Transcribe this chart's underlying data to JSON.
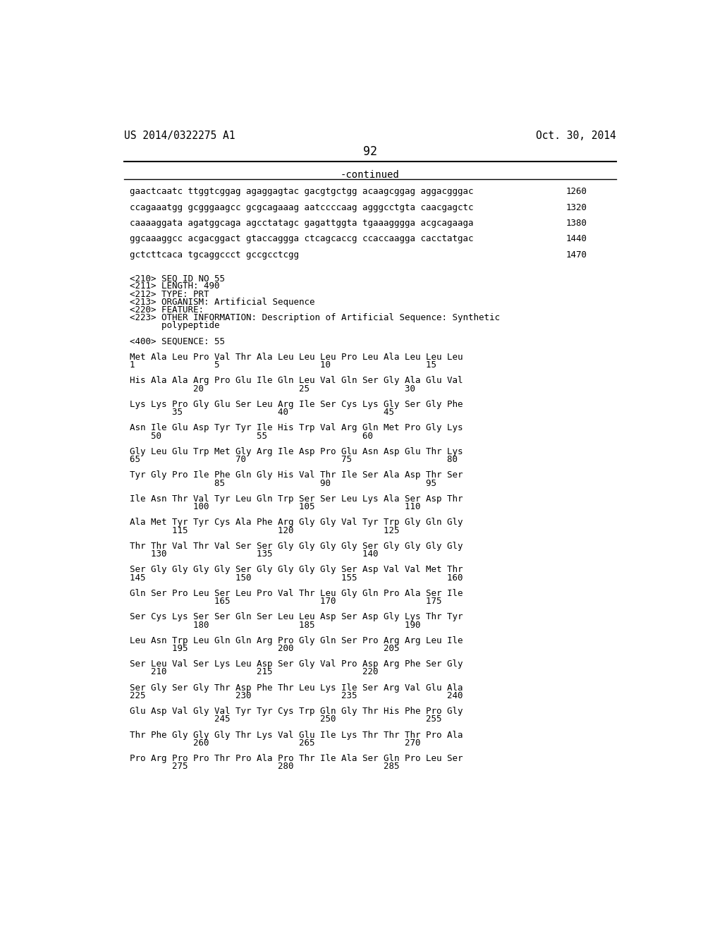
{
  "header_left": "US 2014/0322275 A1",
  "header_right": "Oct. 30, 2014",
  "page_number": "92",
  "continued_label": "-continued",
  "background_color": "#ffffff",
  "text_color": "#000000",
  "content_lines": [
    {
      "text": "gaactcaatc ttggtcggag agaggagtac gacgtgctgg acaagcggag aggacgggac",
      "number": "1260"
    },
    {
      "text": "",
      "number": ""
    },
    {
      "text": "ccagaaatgg gcgggaagcc gcgcagaaag aatccccaag agggcctgta caacgagctc",
      "number": "1320"
    },
    {
      "text": "",
      "number": ""
    },
    {
      "text": "caaaaggata agatggcaga agcctatagc gagattggta tgaaagggga acgcagaaga",
      "number": "1380"
    },
    {
      "text": "",
      "number": ""
    },
    {
      "text": "ggcaaaggcc acgacggact gtaccaggga ctcagcaccg ccaccaagga cacctatgac",
      "number": "1440"
    },
    {
      "text": "",
      "number": ""
    },
    {
      "text": "gctcttcaca tgcaggccct gccgcctcgg",
      "number": "1470"
    },
    {
      "text": "",
      "number": ""
    },
    {
      "text": "",
      "number": ""
    },
    {
      "text": "<210> SEQ ID NO 55",
      "number": ""
    },
    {
      "text": "<211> LENGTH: 490",
      "number": ""
    },
    {
      "text": "<212> TYPE: PRT",
      "number": ""
    },
    {
      "text": "<213> ORGANISM: Artificial Sequence",
      "number": ""
    },
    {
      "text": "<220> FEATURE:",
      "number": ""
    },
    {
      "text": "<223> OTHER INFORMATION: Description of Artificial Sequence: Synthetic",
      "number": ""
    },
    {
      "text": "      polypeptide",
      "number": ""
    },
    {
      "text": "",
      "number": ""
    },
    {
      "text": "<400> SEQUENCE: 55",
      "number": ""
    },
    {
      "text": "",
      "number": ""
    },
    {
      "text": "Met Ala Leu Pro Val Thr Ala Leu Leu Leu Pro Leu Ala Leu Leu Leu",
      "number": ""
    },
    {
      "text": "1               5                   10                  15",
      "number": ""
    },
    {
      "text": "",
      "number": ""
    },
    {
      "text": "His Ala Ala Arg Pro Glu Ile Gln Leu Val Gln Ser Gly Ala Glu Val",
      "number": ""
    },
    {
      "text": "            20                  25                  30",
      "number": ""
    },
    {
      "text": "",
      "number": ""
    },
    {
      "text": "Lys Lys Pro Gly Glu Ser Leu Arg Ile Ser Cys Lys Gly Ser Gly Phe",
      "number": ""
    },
    {
      "text": "        35                  40                  45",
      "number": ""
    },
    {
      "text": "",
      "number": ""
    },
    {
      "text": "Asn Ile Glu Asp Tyr Tyr Ile His Trp Val Arg Gln Met Pro Gly Lys",
      "number": ""
    },
    {
      "text": "    50                  55                  60",
      "number": ""
    },
    {
      "text": "",
      "number": ""
    },
    {
      "text": "Gly Leu Glu Trp Met Gly Arg Ile Asp Pro Glu Asn Asp Glu Thr Lys",
      "number": ""
    },
    {
      "text": "65                  70                  75                  80",
      "number": ""
    },
    {
      "text": "",
      "number": ""
    },
    {
      "text": "Tyr Gly Pro Ile Phe Gln Gly His Val Thr Ile Ser Ala Asp Thr Ser",
      "number": ""
    },
    {
      "text": "                85                  90                  95",
      "number": ""
    },
    {
      "text": "",
      "number": ""
    },
    {
      "text": "Ile Asn Thr Val Tyr Leu Gln Trp Ser Ser Leu Lys Ala Ser Asp Thr",
      "number": ""
    },
    {
      "text": "            100                 105                 110",
      "number": ""
    },
    {
      "text": "",
      "number": ""
    },
    {
      "text": "Ala Met Tyr Tyr Cys Ala Phe Arg Gly Gly Val Tyr Trp Gly Gln Gly",
      "number": ""
    },
    {
      "text": "        115                 120                 125",
      "number": ""
    },
    {
      "text": "",
      "number": ""
    },
    {
      "text": "Thr Thr Val Thr Val Ser Ser Gly Gly Gly Gly Ser Gly Gly Gly Gly",
      "number": ""
    },
    {
      "text": "    130                 135                 140",
      "number": ""
    },
    {
      "text": "",
      "number": ""
    },
    {
      "text": "Ser Gly Gly Gly Gly Ser Gly Gly Gly Gly Ser Asp Val Val Met Thr",
      "number": ""
    },
    {
      "text": "145                 150                 155                 160",
      "number": ""
    },
    {
      "text": "",
      "number": ""
    },
    {
      "text": "Gln Ser Pro Leu Ser Leu Pro Val Thr Leu Gly Gln Pro Ala Ser Ile",
      "number": ""
    },
    {
      "text": "                165                 170                 175",
      "number": ""
    },
    {
      "text": "",
      "number": ""
    },
    {
      "text": "Ser Cys Lys Ser Ser Gln Ser Leu Leu Asp Ser Asp Gly Lys Thr Tyr",
      "number": ""
    },
    {
      "text": "            180                 185                 190",
      "number": ""
    },
    {
      "text": "",
      "number": ""
    },
    {
      "text": "Leu Asn Trp Leu Gln Gln Arg Pro Gly Gln Ser Pro Arg Arg Leu Ile",
      "number": ""
    },
    {
      "text": "        195                 200                 205",
      "number": ""
    },
    {
      "text": "",
      "number": ""
    },
    {
      "text": "Ser Leu Val Ser Lys Leu Asp Ser Gly Val Pro Asp Arg Phe Ser Gly",
      "number": ""
    },
    {
      "text": "    210                 215                 220",
      "number": ""
    },
    {
      "text": "",
      "number": ""
    },
    {
      "text": "Ser Gly Ser Gly Thr Asp Phe Thr Leu Lys Ile Ser Arg Val Glu Ala",
      "number": ""
    },
    {
      "text": "225                 230                 235                 240",
      "number": ""
    },
    {
      "text": "",
      "number": ""
    },
    {
      "text": "Glu Asp Val Gly Val Tyr Tyr Cys Trp Gln Gly Thr His Phe Pro Gly",
      "number": ""
    },
    {
      "text": "                245                 250                 255",
      "number": ""
    },
    {
      "text": "",
      "number": ""
    },
    {
      "text": "Thr Phe Gly Gly Gly Thr Lys Val Glu Ile Lys Thr Thr Thr Pro Ala",
      "number": ""
    },
    {
      "text": "            260                 265                 270",
      "number": ""
    },
    {
      "text": "",
      "number": ""
    },
    {
      "text": "Pro Arg Pro Pro Thr Pro Ala Pro Thr Ile Ala Ser Gln Pro Leu Ser",
      "number": ""
    },
    {
      "text": "        275                 280                 285",
      "number": ""
    }
  ]
}
